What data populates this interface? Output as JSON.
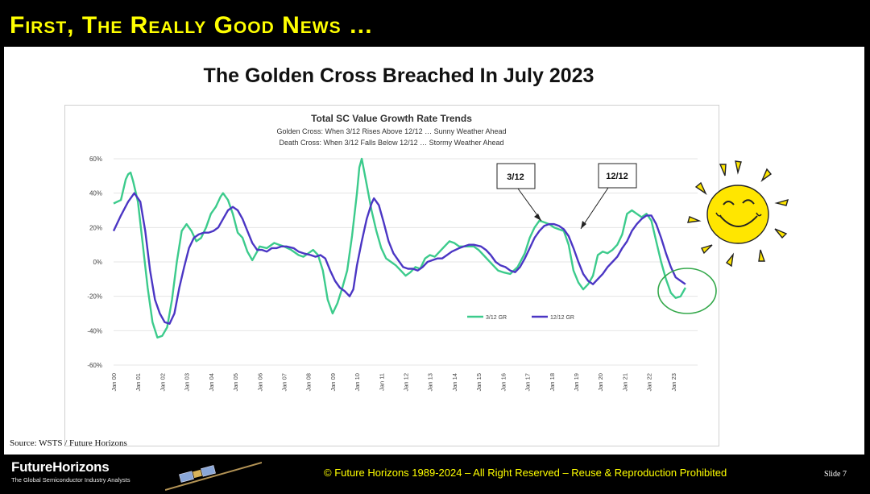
{
  "header": {
    "title": "First, The Really Good News …"
  },
  "slide": {
    "title": "The Golden Cross Breached In July 2023",
    "source": "Source: WSTS / Future Horizons",
    "annotation_left": "3/12",
    "annotation_right": "12/12"
  },
  "footer": {
    "brand": "FutureHorizons",
    "tagline": "The Global Semiconductor Industry Analysts",
    "copyright": "© Future Horizons 1989-2024 – All Right Reserved – Reuse & Reproduction Prohibited",
    "slide_number": "Slide 7"
  },
  "colors": {
    "series_3_12": "#3ccb8c",
    "series_12_12": "#4b36c4",
    "header_text": "#ffff00",
    "circle": "#33a84a",
    "sun": "#ffe600"
  },
  "icons": {
    "sun": "smiling-sun-icon",
    "satellite": "satellite-icon",
    "circle": "highlight-circle"
  },
  "chart_data": {
    "type": "line",
    "title": "Total SC Value Growth Rate Trends",
    "subtitles": [
      "Golden Cross: When 3/12 Rises Above 12/12 … Sunny Weather Ahead",
      "Death Cross: When 3/12 Falls Below 12/12 … Stormy Weather Ahead"
    ],
    "xlabel": "",
    "ylabel": "",
    "x_ticks": [
      "Jan 00",
      "Jan 01",
      "Jan 02",
      "Jan 03",
      "Jan 04",
      "Jan 05",
      "Jan 06",
      "Jan 07",
      "Jan 08",
      "Jan 09",
      "Jan 10",
      "Jan 11",
      "Jan 12",
      "Jan 13",
      "Jan 14",
      "Jan 15",
      "Jan 16",
      "Jan 17",
      "Jan 18",
      "Jan 19",
      "Jan 20",
      "Jan 21",
      "Jan 22",
      "Jan 23"
    ],
    "y_ticks": [
      "60%",
      "40%",
      "20%",
      "0%",
      "-20%",
      "-40%",
      "-60%"
    ],
    "ylim": [
      -60,
      60
    ],
    "xlim": [
      2000,
      2024
    ],
    "grid": true,
    "legend_position": "bottom-right",
    "series": [
      {
        "name": "3/12 GR",
        "points": [
          [
            2000,
            34
          ],
          [
            2000.3,
            36
          ],
          [
            2000.5,
            48
          ],
          [
            2000.6,
            51
          ],
          [
            2000.7,
            52
          ],
          [
            2000.8,
            47
          ],
          [
            2001,
            35
          ],
          [
            2001.2,
            10
          ],
          [
            2001.4,
            -15
          ],
          [
            2001.6,
            -35
          ],
          [
            2001.8,
            -44
          ],
          [
            2002,
            -43
          ],
          [
            2002.2,
            -38
          ],
          [
            2002.4,
            -22
          ],
          [
            2002.6,
            0
          ],
          [
            2002.8,
            18
          ],
          [
            2003,
            22
          ],
          [
            2003.2,
            18
          ],
          [
            2003.4,
            12
          ],
          [
            2003.6,
            14
          ],
          [
            2003.8,
            20
          ],
          [
            2004,
            28
          ],
          [
            2004.2,
            32
          ],
          [
            2004.4,
            38
          ],
          [
            2004.5,
            40
          ],
          [
            2004.7,
            36
          ],
          [
            2004.9,
            28
          ],
          [
            2005.1,
            17
          ],
          [
            2005.3,
            14
          ],
          [
            2005.5,
            6
          ],
          [
            2005.7,
            1
          ],
          [
            2005.9,
            6
          ],
          [
            2006,
            9
          ],
          [
            2006.3,
            8
          ],
          [
            2006.6,
            11
          ],
          [
            2006.8,
            10
          ],
          [
            2007,
            9
          ],
          [
            2007.3,
            7
          ],
          [
            2007.6,
            4
          ],
          [
            2007.8,
            3
          ],
          [
            2008,
            5
          ],
          [
            2008.2,
            7
          ],
          [
            2008.4,
            4
          ],
          [
            2008.6,
            -5
          ],
          [
            2008.8,
            -22
          ],
          [
            2009,
            -30
          ],
          [
            2009.2,
            -24
          ],
          [
            2009.4,
            -15
          ],
          [
            2009.6,
            -5
          ],
          [
            2009.8,
            15
          ],
          [
            2010,
            40
          ],
          [
            2010.1,
            55
          ],
          [
            2010.2,
            60
          ],
          [
            2010.4,
            45
          ],
          [
            2010.6,
            30
          ],
          [
            2010.8,
            18
          ],
          [
            2011,
            8
          ],
          [
            2011.2,
            2
          ],
          [
            2011.4,
            0
          ],
          [
            2011.6,
            -2
          ],
          [
            2011.8,
            -5
          ],
          [
            2012,
            -8
          ],
          [
            2012.2,
            -6
          ],
          [
            2012.4,
            -3
          ],
          [
            2012.6,
            -4
          ],
          [
            2012.8,
            2
          ],
          [
            2013,
            4
          ],
          [
            2013.2,
            3
          ],
          [
            2013.4,
            6
          ],
          [
            2013.6,
            9
          ],
          [
            2013.8,
            12
          ],
          [
            2014,
            11
          ],
          [
            2014.2,
            9
          ],
          [
            2014.5,
            9
          ],
          [
            2014.8,
            9
          ],
          [
            2015,
            7
          ],
          [
            2015.2,
            4
          ],
          [
            2015.4,
            1
          ],
          [
            2015.6,
            -2
          ],
          [
            2015.8,
            -5
          ],
          [
            2016,
            -6
          ],
          [
            2016.3,
            -7
          ],
          [
            2016.6,
            -3
          ],
          [
            2016.9,
            5
          ],
          [
            2017.1,
            14
          ],
          [
            2017.3,
            20
          ],
          [
            2017.5,
            24
          ],
          [
            2017.7,
            23
          ],
          [
            2017.9,
            22
          ],
          [
            2018.1,
            20
          ],
          [
            2018.3,
            19
          ],
          [
            2018.5,
            18
          ],
          [
            2018.7,
            10
          ],
          [
            2018.9,
            -5
          ],
          [
            2019.1,
            -12
          ],
          [
            2019.3,
            -16
          ],
          [
            2019.5,
            -13
          ],
          [
            2019.7,
            -8
          ],
          [
            2019.9,
            4
          ],
          [
            2020.1,
            6
          ],
          [
            2020.3,
            5
          ],
          [
            2020.5,
            7
          ],
          [
            2020.7,
            10
          ],
          [
            2020.9,
            16
          ],
          [
            2021.1,
            28
          ],
          [
            2021.3,
            30
          ],
          [
            2021.5,
            28
          ],
          [
            2021.7,
            26
          ],
          [
            2021.9,
            28
          ],
          [
            2022.1,
            24
          ],
          [
            2022.3,
            12
          ],
          [
            2022.5,
            0
          ],
          [
            2022.7,
            -10
          ],
          [
            2022.9,
            -18
          ],
          [
            2023.1,
            -21
          ],
          [
            2023.3,
            -20
          ],
          [
            2023.5,
            -15
          ]
        ]
      },
      {
        "name": "12/12 GR",
        "points": [
          [
            2000,
            18
          ],
          [
            2000.3,
            27
          ],
          [
            2000.6,
            35
          ],
          [
            2000.85,
            40
          ],
          [
            2001.1,
            35
          ],
          [
            2001.3,
            18
          ],
          [
            2001.5,
            -5
          ],
          [
            2001.7,
            -22
          ],
          [
            2001.9,
            -30
          ],
          [
            2002.1,
            -35
          ],
          [
            2002.3,
            -36
          ],
          [
            2002.5,
            -30
          ],
          [
            2002.7,
            -15
          ],
          [
            2002.9,
            -3
          ],
          [
            2003.1,
            8
          ],
          [
            2003.3,
            14
          ],
          [
            2003.5,
            16
          ],
          [
            2003.7,
            17
          ],
          [
            2003.9,
            17
          ],
          [
            2004.1,
            18
          ],
          [
            2004.3,
            20
          ],
          [
            2004.5,
            25
          ],
          [
            2004.7,
            30
          ],
          [
            2004.9,
            32
          ],
          [
            2005.1,
            30
          ],
          [
            2005.3,
            25
          ],
          [
            2005.5,
            18
          ],
          [
            2005.7,
            11
          ],
          [
            2005.9,
            7
          ],
          [
            2006.1,
            7
          ],
          [
            2006.3,
            6
          ],
          [
            2006.5,
            8
          ],
          [
            2006.7,
            8
          ],
          [
            2006.9,
            9
          ],
          [
            2007.1,
            9
          ],
          [
            2007.4,
            8
          ],
          [
            2007.6,
            6
          ],
          [
            2007.8,
            5
          ],
          [
            2008.1,
            4
          ],
          [
            2008.3,
            3
          ],
          [
            2008.5,
            4
          ],
          [
            2008.7,
            2
          ],
          [
            2008.9,
            -5
          ],
          [
            2009.1,
            -11
          ],
          [
            2009.3,
            -15
          ],
          [
            2009.5,
            -17
          ],
          [
            2009.7,
            -20
          ],
          [
            2009.85,
            -16
          ],
          [
            2010,
            -2
          ],
          [
            2010.2,
            12
          ],
          [
            2010.4,
            25
          ],
          [
            2010.6,
            34
          ],
          [
            2010.7,
            37
          ],
          [
            2010.9,
            33
          ],
          [
            2011.1,
            23
          ],
          [
            2011.3,
            12
          ],
          [
            2011.5,
            5
          ],
          [
            2011.7,
            1
          ],
          [
            2011.9,
            -3
          ],
          [
            2012.1,
            -4
          ],
          [
            2012.3,
            -4
          ],
          [
            2012.5,
            -5
          ],
          [
            2012.7,
            -3
          ],
          [
            2012.9,
            0
          ],
          [
            2013.1,
            1
          ],
          [
            2013.3,
            2
          ],
          [
            2013.5,
            2
          ],
          [
            2013.7,
            4
          ],
          [
            2013.9,
            6
          ],
          [
            2014.2,
            8
          ],
          [
            2014.4,
            9
          ],
          [
            2014.6,
            10
          ],
          [
            2014.8,
            10
          ],
          [
            2015.1,
            9
          ],
          [
            2015.3,
            7
          ],
          [
            2015.5,
            4
          ],
          [
            2015.7,
            0
          ],
          [
            2015.9,
            -2
          ],
          [
            2016.1,
            -3
          ],
          [
            2016.3,
            -5
          ],
          [
            2016.5,
            -6
          ],
          [
            2016.7,
            -3
          ],
          [
            2016.9,
            2
          ],
          [
            2017.1,
            8
          ],
          [
            2017.3,
            14
          ],
          [
            2017.5,
            18
          ],
          [
            2017.7,
            21
          ],
          [
            2017.9,
            22
          ],
          [
            2018.1,
            22
          ],
          [
            2018.3,
            21
          ],
          [
            2018.5,
            19
          ],
          [
            2018.7,
            15
          ],
          [
            2018.9,
            8
          ],
          [
            2019.1,
            0
          ],
          [
            2019.3,
            -7
          ],
          [
            2019.5,
            -11
          ],
          [
            2019.7,
            -13
          ],
          [
            2019.9,
            -10
          ],
          [
            2020.1,
            -7
          ],
          [
            2020.3,
            -3
          ],
          [
            2020.5,
            0
          ],
          [
            2020.7,
            3
          ],
          [
            2020.9,
            8
          ],
          [
            2021.1,
            12
          ],
          [
            2021.3,
            18
          ],
          [
            2021.5,
            22
          ],
          [
            2021.7,
            25
          ],
          [
            2021.9,
            27
          ],
          [
            2022.1,
            27
          ],
          [
            2022.3,
            22
          ],
          [
            2022.5,
            14
          ],
          [
            2022.7,
            5
          ],
          [
            2022.9,
            -3
          ],
          [
            2023.1,
            -9
          ],
          [
            2023.3,
            -11
          ],
          [
            2023.5,
            -13
          ]
        ]
      }
    ]
  }
}
